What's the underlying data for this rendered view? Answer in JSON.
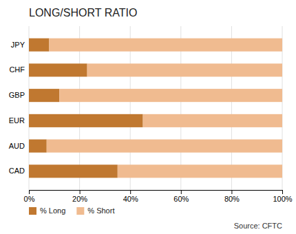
{
  "chart_data": {
    "type": "bar",
    "orientation": "horizontal",
    "stacked": true,
    "title": "LONG/SHORT RATIO",
    "categories": [
      "CAD",
      "AUD",
      "EUR",
      "GBP",
      "CHF",
      "JPY"
    ],
    "series": [
      {
        "name": "% Long",
        "color": "#c07830",
        "values": [
          35,
          7,
          45,
          12,
          23,
          8
        ]
      },
      {
        "name": "% Short",
        "color": "#f0bb90",
        "values": [
          65,
          93,
          55,
          88,
          77,
          92
        ]
      }
    ],
    "xlim": [
      0,
      100
    ],
    "xticks": [
      {
        "value": 0,
        "label": "0%"
      },
      {
        "value": 20,
        "label": "20%"
      },
      {
        "value": 40,
        "label": "40%"
      },
      {
        "value": 60,
        "label": "60%"
      },
      {
        "value": 80,
        "label": "80%"
      },
      {
        "value": 100,
        "label": "100%"
      }
    ],
    "grid": true,
    "legend": "bottom",
    "annotations": [
      "Source: CFTC"
    ]
  }
}
